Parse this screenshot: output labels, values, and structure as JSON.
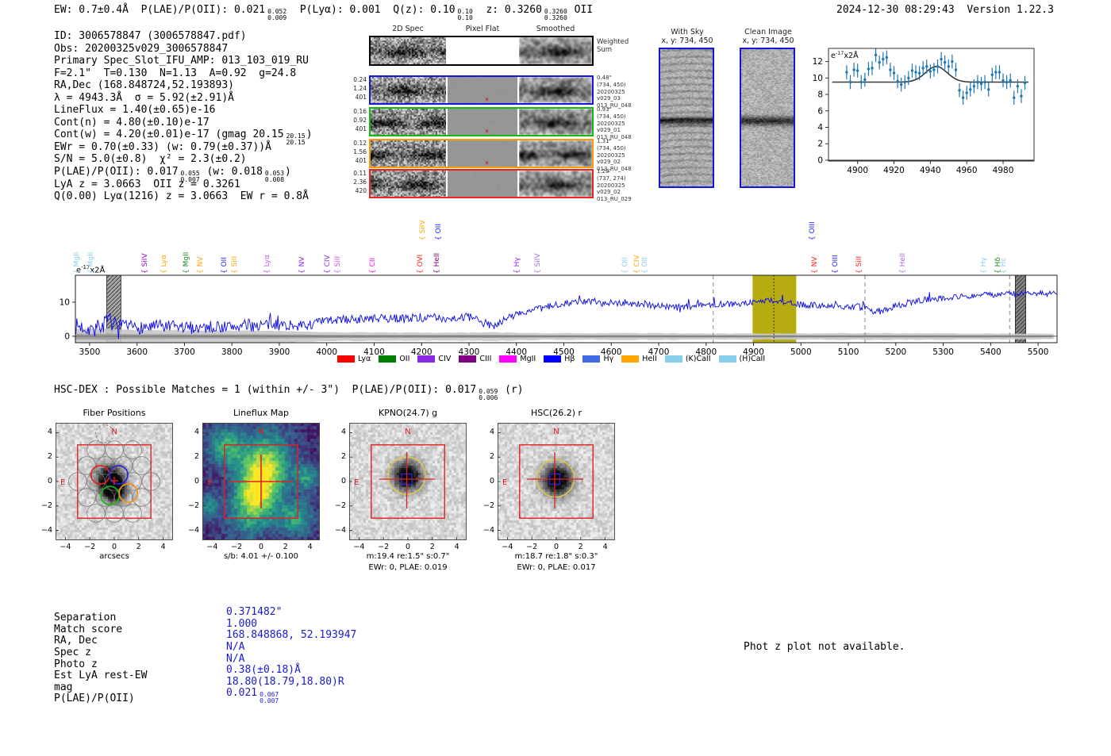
{
  "meta": {
    "timestamp": "2024-12-30 08:29:43  Version 1.22.3"
  },
  "header_segments": [
    {
      "t": "EW: 0.7±0.4Å  P(LAE)/P(OII): 0.021"
    },
    {
      "f": [
        "0.052",
        "0.009"
      ]
    },
    {
      "t": "  P(Lyα): 0.001  Q(z): 0.10"
    },
    {
      "f": [
        "0.10",
        "0.10"
      ]
    },
    {
      "t": "  z: 0.3260"
    },
    {
      "f": [
        "0.3260",
        "0.3260"
      ]
    },
    {
      "t": " OII"
    }
  ],
  "info_lines": [
    [
      {
        "t": "ID: 3006578847 (3006578847.pdf)"
      }
    ],
    [
      {
        "t": "Obs: 20200325v029_3006578847"
      }
    ],
    [
      {
        "t": "Primary Spec_Slot_IFU_AMP: 013_103_019_RU"
      }
    ],
    [
      {
        "t": "F=2.1\"  T=0.130  N=1.13  A=0.92  g=24.8"
      }
    ],
    [
      {
        "t": "RA,Dec (168.848724,52.193893)"
      }
    ],
    [
      {
        "t": "λ = 4943.3Å  σ = 5.92(±2.91)Å"
      }
    ],
    [
      {
        "t": "LineFlux = 1.40(±0.65)e-16"
      }
    ],
    [
      {
        "t": "Cont(n) = 4.80(±0.10)e-17"
      }
    ],
    [
      {
        "t": "Cont(w) = 4.20(±0.01)e-17 (gmag 20.15"
      },
      {
        "f": [
          "20.15",
          "20.15"
        ]
      },
      {
        "t": ")"
      }
    ],
    [
      {
        "t": "EWr = 0.70(±0.33) (w: 0.79(±0.37))Å"
      }
    ],
    [
      {
        "t": "S/N = 5.0(±0.8)  χ² = 2.3(±0.2)"
      }
    ],
    [
      {
        "t": "P(LAE)/P(OII): 0.017"
      },
      {
        "f": [
          "0.055",
          "0.007"
        ]
      },
      {
        "t": " (w: 0.018"
      },
      {
        "f": [
          "0.053",
          "0.008"
        ]
      },
      {
        "t": ")"
      }
    ],
    [
      {
        "t": "LyA z = 3.0663  OII z = 0.3261"
      }
    ],
    [
      {
        "t": "Q(0.00) Lyα(1216) z = 3.0663  EW r = 0.8Å"
      }
    ]
  ],
  "spec2d": {
    "col_headers": [
      "2D Spec",
      "Pixel Flat",
      "Smoothed"
    ],
    "weighted": {
      "label_lines": [
        "Weighted",
        "Sum"
      ]
    },
    "rows": [
      {
        "border": "#000000",
        "kind": "weighted",
        "left": [],
        "right": []
      },
      {
        "border": "#1515dd",
        "left": [
          "0.24",
          "1.24",
          "401"
        ],
        "right": [
          "0.48\"",
          "(734, 450)",
          "20200325",
          "v029_03",
          "013_RU_048"
        ]
      },
      {
        "border": "#11bb11",
        "left": [
          "0.16",
          "0.92",
          "401"
        ],
        "right": [
          "0.93\"",
          "(734, 450)",
          "20200325",
          "v029_01",
          "013_RU_048"
        ]
      },
      {
        "border": "#ff9900",
        "left": [
          "0.12",
          "1.56",
          "401"
        ],
        "right": [
          "1.31\"",
          "(734, 450)",
          "20200325",
          "v029_02",
          "013_RU_048"
        ]
      },
      {
        "border": "#ee2222",
        "left": [
          "0.11",
          "2.36",
          "420"
        ],
        "right": [
          "1.28\"",
          "(737, 274)",
          "20200325",
          "v029_02",
          "013_RU_029"
        ]
      }
    ]
  },
  "cutouts": {
    "withsky": {
      "title": "With Sky",
      "sub": "x, y: 734, 450"
    },
    "clean": {
      "title": "Clean Image",
      "sub": "x, y: 734, 450"
    }
  },
  "hsc_segments": [
    {
      "t": "HSC-DEX : Possible Matches = 1 (within +/- 3\")  P(LAE)/P(OII): 0.017"
    },
    {
      "f": [
        "0.059",
        "0.006"
      ]
    },
    {
      "t": " (r)"
    }
  ],
  "panels": [
    {
      "title": "Fiber Positions",
      "xlabel": "arcsecs",
      "caption": "",
      "x_ticks": [
        -4,
        -2,
        0,
        2,
        4
      ],
      "y_ticks": [
        -4,
        -2,
        0,
        2,
        4
      ],
      "compass": [
        "N",
        "E"
      ]
    },
    {
      "title": "Lineflux Map",
      "xlabel": "s/b: 4.01 +/- 0.100",
      "caption": "",
      "x_ticks": [
        -4,
        -2,
        0,
        2,
        4
      ],
      "y_ticks": [
        -4,
        -2,
        0,
        2,
        4
      ],
      "compass": [
        "N",
        "E"
      ]
    },
    {
      "title": "KPNO(24.7) g",
      "xlabel": "m:19.4  re:1.5\"  s:0.7\"",
      "caption": "EWr: 0, PLAE: 0.019",
      "x_ticks": [
        -4,
        -2,
        0,
        2,
        4
      ],
      "y_ticks": [
        -4,
        -2,
        0,
        2,
        4
      ],
      "compass": [
        "N",
        "E"
      ]
    },
    {
      "title": "HSC(26.2) r",
      "xlabel": "m:18.7  re:1.8\"  s:0.3\"",
      "caption": "EWr: 0, PLAE: 0.017",
      "x_ticks": [
        -4,
        -2,
        0,
        2,
        4
      ],
      "y_ticks": [
        -4,
        -2,
        0,
        2,
        4
      ],
      "compass": [
        "N",
        "E"
      ]
    }
  ],
  "match_table": {
    "rows": [
      {
        "label": "Separation",
        "segs": [
          {
            "t": "0.371482\""
          }
        ]
      },
      {
        "label": "Match score",
        "segs": [
          {
            "t": "1.000"
          }
        ]
      },
      {
        "label": "RA, Dec",
        "segs": [
          {
            "t": "168.848868, 52.193947"
          }
        ]
      },
      {
        "label": "Spec z",
        "segs": [
          {
            "t": "N/A"
          }
        ]
      },
      {
        "label": "Photo z",
        "segs": [
          {
            "t": "N/A"
          }
        ]
      },
      {
        "label": "Est LyA rest-EW",
        "segs": [
          {
            "t": "0.38(±0.18)Å"
          }
        ]
      },
      {
        "label": "mag",
        "segs": [
          {
            "t": "18.80(18.79,18.80)R"
          }
        ]
      },
      {
        "label": "P(LAE)/P(OII)",
        "segs": [
          {
            "t": "0.021"
          },
          {
            "f": [
              "0.067",
              "0.007"
            ]
          }
        ]
      }
    ]
  },
  "photz_note": "Phot z plot not available.",
  "chart_data": [
    {
      "id": "emission-line-zoom",
      "type": "scatter",
      "title": "",
      "units_label": [
        {
          "t": "e"
        },
        {
          "sup": "-17"
        },
        {
          "t": "x2Å"
        }
      ],
      "xlim": [
        4884,
        4997
      ],
      "ylim": [
        -0.1,
        13.6
      ],
      "x_ticks": [
        4900,
        4920,
        4940,
        4960,
        4980
      ],
      "y_ticks": [
        0,
        2,
        4,
        6,
        8,
        10,
        12
      ],
      "x": [
        4894,
        4896,
        4898,
        4900,
        4902,
        4904,
        4906,
        4908,
        4910,
        4912,
        4914,
        4916,
        4918,
        4920,
        4922,
        4924,
        4926,
        4928,
        4930,
        4932,
        4934,
        4936,
        4938,
        4940,
        4942,
        4944,
        4946,
        4948,
        4950,
        4952,
        4954,
        4956,
        4958,
        4960,
        4962,
        4964,
        4966,
        4968,
        4970,
        4972,
        4974,
        4976,
        4978,
        4980,
        4982,
        4984,
        4986,
        4988,
        4990,
        4992
      ],
      "y": [
        10.7,
        9.5,
        11.0,
        10.9,
        9.5,
        9.8,
        11.1,
        11.2,
        12.8,
        11.9,
        12.3,
        12.5,
        11.0,
        10.6,
        9.6,
        9.2,
        9.5,
        10.0,
        10.9,
        10.7,
        10.6,
        11.2,
        11.4,
        10.8,
        11.0,
        11.4,
        12.3,
        11.9,
        11.4,
        12.0,
        11.0,
        8.5,
        7.6,
        8.2,
        8.6,
        9.0,
        9.5,
        9.3,
        9.5,
        8.6,
        10.4,
        10.7,
        10.7,
        9.7,
        9.5,
        9.7,
        7.6,
        9.0,
        7.8,
        9.4
      ],
      "yerr": 0.85,
      "fit": {
        "baseline": 9.5,
        "amplitude": 1.9,
        "center": 4943.3,
        "sigma": 5.92
      },
      "marker_color": "#1f77b4",
      "fit_color": "#3a3a3a"
    },
    {
      "id": "full-spectrum",
      "type": "line",
      "units_label": [
        {
          "t": "e"
        },
        {
          "sup": "-17"
        },
        {
          "t": "x2Å"
        }
      ],
      "xlim": [
        3470,
        5540
      ],
      "ylim": [
        -1.9,
        17.9
      ],
      "x_ticks": [
        3500,
        3600,
        3700,
        3800,
        3900,
        4000,
        4100,
        4200,
        4300,
        4400,
        4500,
        4600,
        4700,
        4800,
        4900,
        5000,
        5100,
        5200,
        5300,
        5400,
        5500
      ],
      "y_ticks": [
        0,
        10
      ],
      "trend_x": [
        3470,
        3510,
        3545,
        3560,
        3600,
        3650,
        3700,
        3750,
        3800,
        3840,
        3900,
        3950,
        4000,
        4060,
        4120,
        4180,
        4240,
        4300,
        4347,
        4400,
        4450,
        4500,
        4560,
        4620,
        4680,
        4740,
        4800,
        4860,
        4900,
        4935,
        4970,
        5000,
        5060,
        5120,
        5165,
        5200,
        5250,
        5300,
        5350,
        5400,
        5450,
        5500,
        5540
      ],
      "trend_y": [
        3.0,
        2.2,
        4.5,
        2.5,
        2.6,
        2.8,
        2.5,
        2.7,
        2.8,
        3.2,
        3.4,
        3.0,
        4.6,
        5.0,
        5.2,
        5.4,
        5.2,
        5.6,
        3.0,
        6.5,
        8.0,
        9.8,
        10.2,
        9.8,
        9.2,
        8.4,
        9.3,
        9.5,
        10.0,
        10.6,
        9.8,
        9.2,
        9.0,
        8.6,
        7.0,
        9.0,
        10.5,
        11.3,
        11.8,
        12.2,
        12.4,
        12.6,
        12.4
      ],
      "noise": [
        2.4,
        2.4,
        2.6,
        2.2,
        2.0,
        2.0,
        1.9,
        1.8,
        1.8,
        1.9,
        1.7,
        1.5,
        1.3,
        1.3,
        1.2,
        1.2,
        1.2,
        1.2,
        1.3,
        1.1,
        1.0,
        1.0,
        1.0,
        1.0,
        1.0,
        1.0,
        0.9,
        0.9,
        0.9,
        0.9,
        0.9,
        0.9,
        0.9,
        0.95,
        1.0,
        1.0,
        0.95,
        0.9,
        0.9,
        0.9,
        0.85,
        0.85,
        0.85
      ],
      "line_color": "#0a0ae6",
      "highlight_band": {
        "range": [
          4898,
          4990
        ],
        "color": "#b3a705"
      },
      "dotted_line": 4943,
      "dashed_lines": [
        4815,
        5135,
        5440
      ],
      "hatched_bands": [
        [
          3536,
          3566
        ],
        [
          5452,
          5474
        ]
      ],
      "legend": [
        [
          "Lyα",
          "#ff0000"
        ],
        [
          "OII",
          "#008000"
        ],
        [
          "CIV",
          "#8a2be2"
        ],
        [
          "CIII",
          "#800080"
        ],
        [
          "MgII",
          "#ff00ff"
        ],
        [
          "Hβ",
          "#0000ff"
        ],
        [
          "Hγ",
          "#4169e1"
        ],
        [
          "HeII",
          "#ffa500"
        ],
        [
          "(K)CaII",
          "#87ceeb"
        ],
        [
          "(H)CaII",
          "#87ceeb"
        ]
      ],
      "line_labels": [
        [
          3473,
          "MgII",
          "#87ceeb",
          0
        ],
        [
          3503,
          "MgII",
          "#87ceeb",
          0
        ],
        [
          3617,
          "SiIV",
          "#9400d3",
          0
        ],
        [
          3657,
          "Lyα",
          "#ffa500",
          0
        ],
        [
          3704,
          "MgII",
          "#228b22",
          0
        ],
        [
          3734,
          "NV",
          "#ffa500",
          0
        ],
        [
          3785,
          "OII",
          "#2222ff",
          0
        ],
        [
          3806,
          "SiII",
          "#ffa500",
          0
        ],
        [
          3875,
          "Lyα",
          "#cc55ee",
          0
        ],
        [
          3949,
          "NV",
          "#8a2be2",
          0
        ],
        [
          4002,
          "CIV",
          "#8a2be2",
          0
        ],
        [
          4024,
          "SiII",
          "#cc55ee",
          0
        ],
        [
          4097,
          "CII",
          "#ff00ff",
          0
        ],
        [
          4198,
          "OVI",
          "#ff2222",
          0
        ],
        [
          4203,
          "SiIV",
          "#ffa500",
          1
        ],
        [
          4233,
          "HeII",
          "#800080",
          0
        ],
        [
          4236,
          "OII",
          "#2222ff",
          1
        ],
        [
          4402,
          "Hγ",
          "#8a2be2",
          0
        ],
        [
          4446,
          "SiIV",
          "#b06ae0",
          0
        ],
        [
          4630,
          "OII",
          "#87ceeb",
          0
        ],
        [
          4655,
          "CIV",
          "#ffa500",
          0
        ],
        [
          4672,
          "OII",
          "#87ceeb",
          0
        ],
        [
          5024,
          "OIII",
          "#2222ff",
          1
        ],
        [
          5029,
          "NV",
          "#ff2222",
          0
        ],
        [
          5073,
          "OIII",
          "#2222ff",
          0
        ],
        [
          5123,
          "SiII",
          "#ff2222",
          0
        ],
        [
          5215,
          "HeII",
          "#b06ae0",
          0
        ],
        [
          5386,
          "Hγ",
          "#87ceeb",
          0
        ],
        [
          5416,
          "Hδ",
          "#228b22",
          0
        ],
        [
          5428,
          "Hε",
          "#87ceeb",
          0
        ]
      ]
    }
  ]
}
